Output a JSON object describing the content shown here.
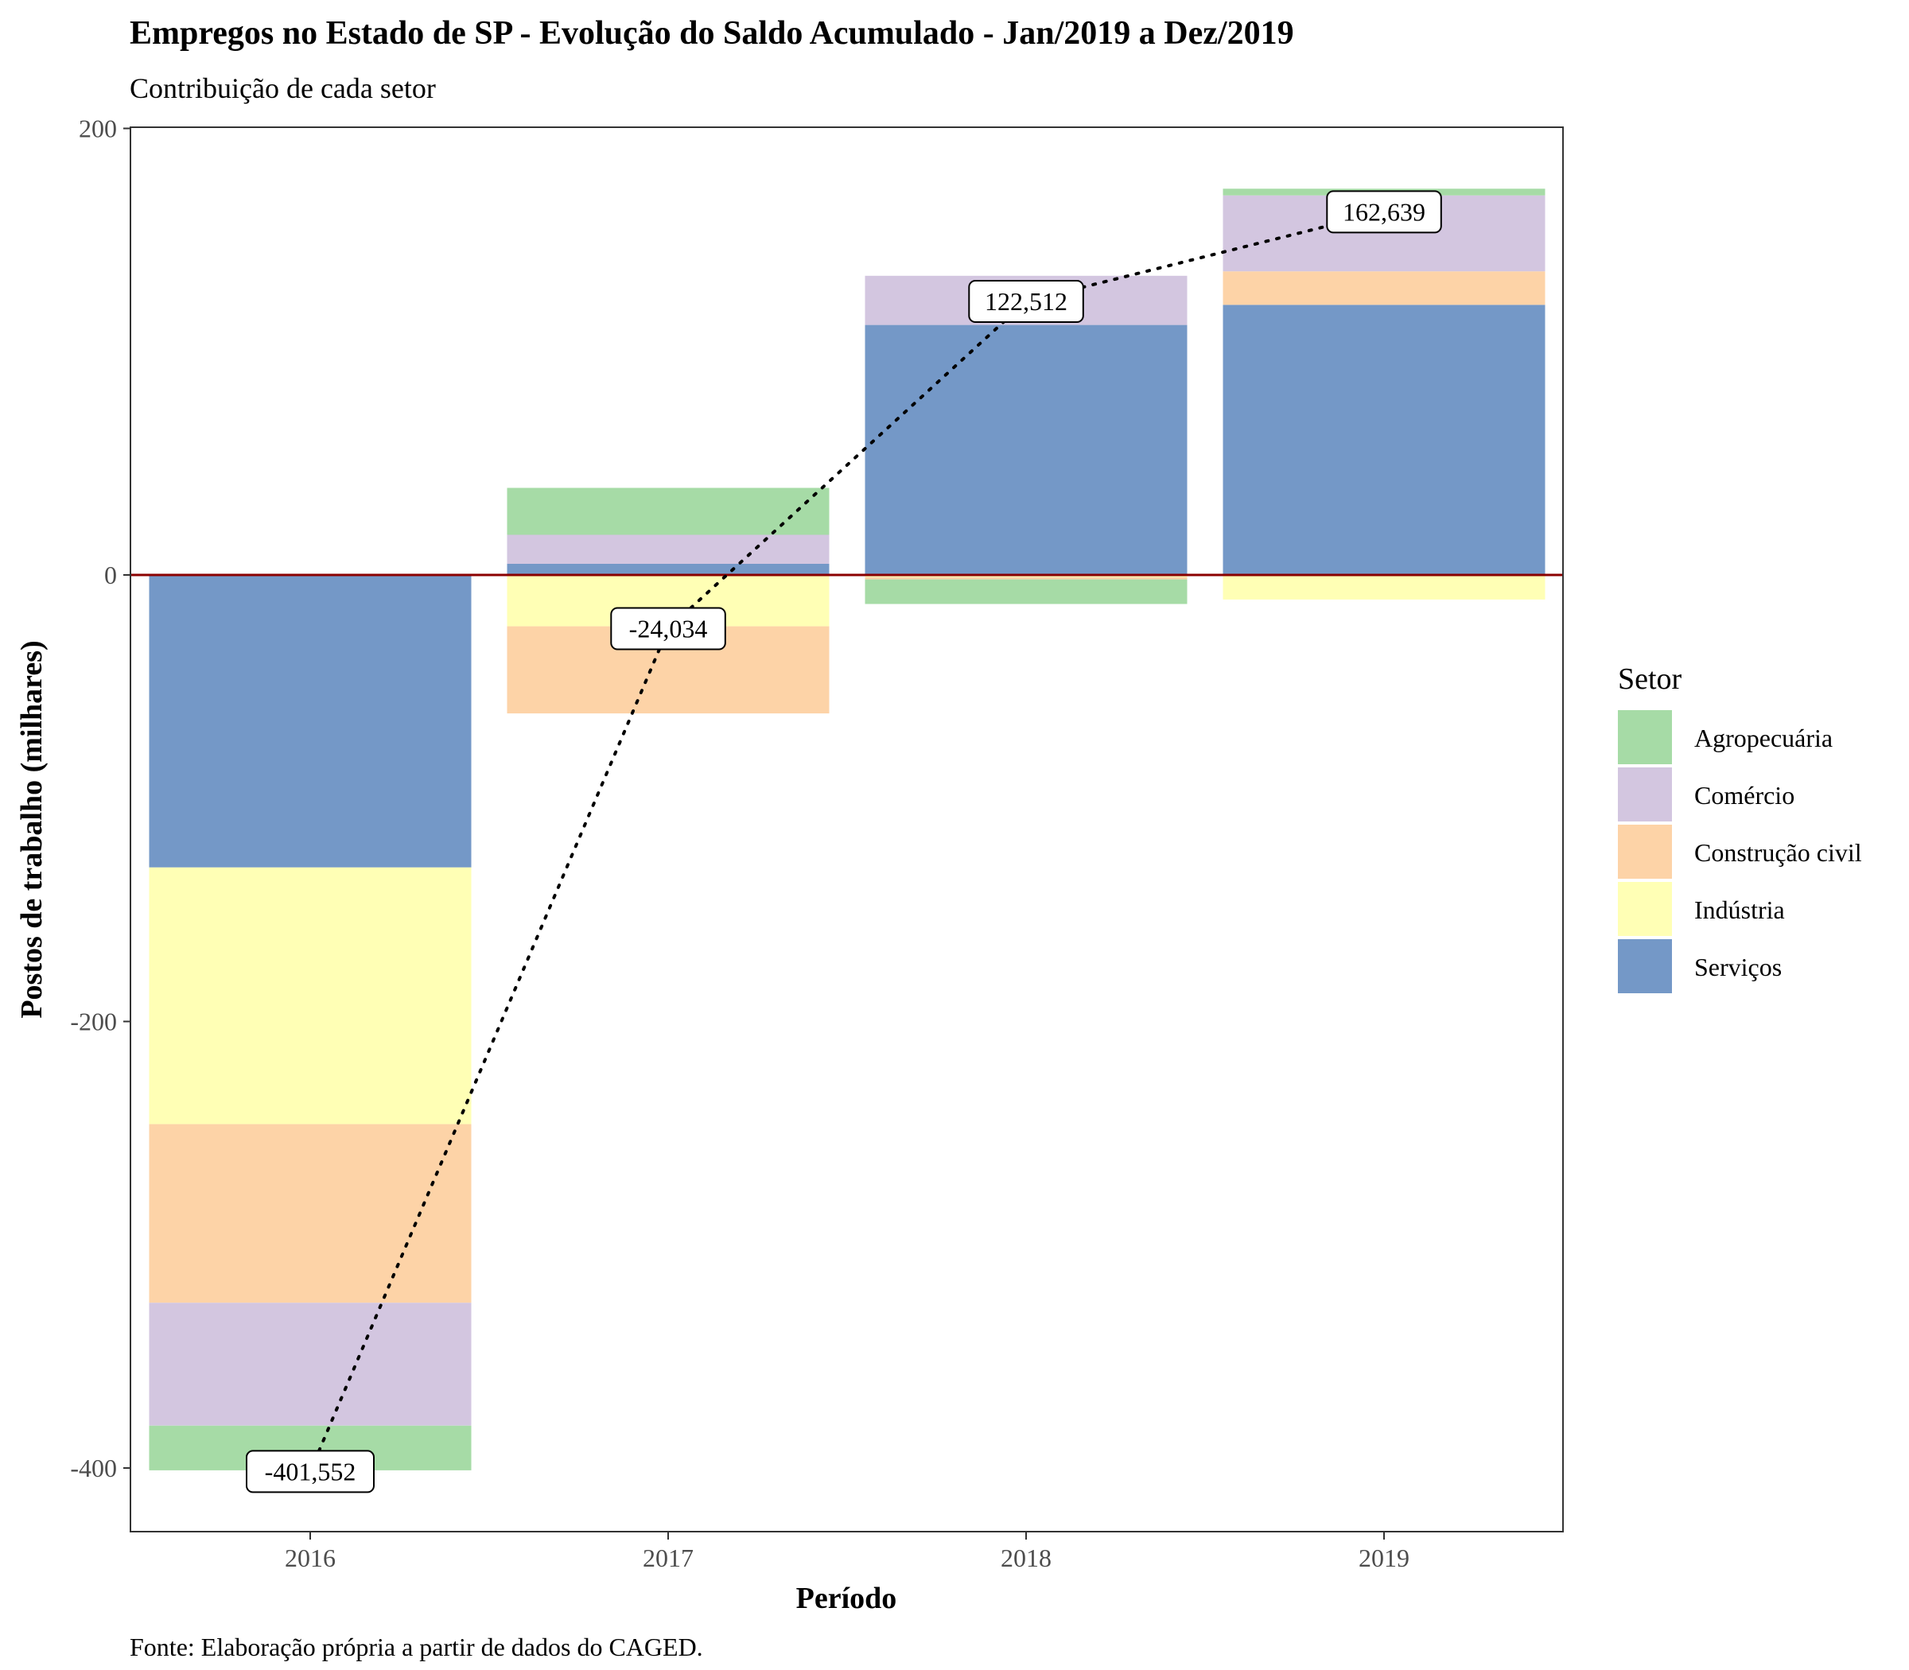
{
  "title": "Empregos no Estado de SP - Evolução do Saldo Acumulado - Jan/2019 a Dez/2019",
  "subtitle": "Contribuição de cada setor",
  "caption": "Fonte: Elaboração própria a partir de dados do CAGED.",
  "colors": {
    "Agropecuária": "#a6dba6",
    "Comércio": "#d3c6e0",
    "Construção civil": "#fdd3a7",
    "Indústria": "#ffffb5",
    "Serviços": "#7498c7",
    "zero_line": "#8b0000",
    "net_line": "#000000"
  },
  "chart_data": {
    "type": "bar",
    "stacked": true,
    "title": "Empregos no Estado de SP - Evolução do Saldo Acumulado - Jan/2019 a Dez/2019",
    "subtitle": "Contribuição de cada setor",
    "xlabel": "Período",
    "ylabel": "Postos de trabalho (milhares)",
    "categories": [
      "2016",
      "2017",
      "2018",
      "2019"
    ],
    "ylim": [
      -430,
      200
    ],
    "yticks": [
      -400,
      -200,
      0,
      200
    ],
    "legend_title": "Setor",
    "legend_position": "right",
    "grid": false,
    "series": [
      {
        "name": "Serviços",
        "values": [
          -131,
          5,
          112,
          121
        ]
      },
      {
        "name": "Indústria",
        "values": [
          -115,
          -23,
          -1,
          -11
        ]
      },
      {
        "name": "Construção civil",
        "values": [
          -80,
          -39,
          -1,
          15
        ]
      },
      {
        "name": "Comércio",
        "values": [
          -55,
          13,
          22,
          34
        ]
      },
      {
        "name": "Agropecuária",
        "values": [
          -20,
          21,
          -11,
          3
        ]
      }
    ],
    "net_totals": {
      "values": [
        -401.552,
        -24.034,
        122.512,
        162.639
      ],
      "labels": [
        "-401,552",
        "-24,034",
        "122,512",
        "162,639"
      ]
    }
  }
}
